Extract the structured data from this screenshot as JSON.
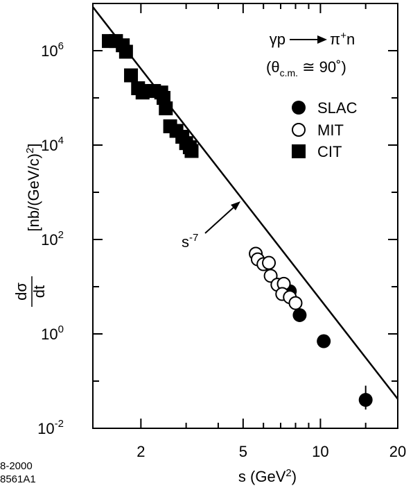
{
  "chart_data": {
    "type": "scatter",
    "xscale": "log",
    "yscale": "log",
    "xlim": [
      1.3,
      20
    ],
    "ylim": [
      0.01,
      10000000
    ],
    "x_ticks": [
      "2",
      "5",
      "10",
      "20"
    ],
    "y_ticks": [
      {
        "value": 1000000,
        "base": "10",
        "exp": "6"
      },
      {
        "value": 10000,
        "base": "10",
        "exp": "4"
      },
      {
        "value": 100,
        "base": "10",
        "exp": "2"
      },
      {
        "value": 1,
        "base": "10",
        "exp": "0"
      },
      {
        "value": 0.01,
        "base": "10",
        "exp": "-2"
      }
    ],
    "xlabel": {
      "main": "s (GeV",
      "sup": "2",
      "close": ")"
    },
    "ylabel": {
      "frac_num": "dσ",
      "frac_den": "dt",
      "units_main": "[nb/(GeV/c)",
      "units_sup": "2",
      "units_close": "]"
    },
    "reaction": {
      "line1_left": "γp",
      "line1_right_main": "π",
      "line1_right_sup": "+",
      "line1_right_tail": "n",
      "line2_open": "(θ",
      "line2_sub": "c.m.",
      "line2_rest": " ≅ 90˚)"
    },
    "fit_line": {
      "label_main": "s",
      "label_sup": "-7",
      "slope": -7,
      "x": [
        1.3,
        20
      ],
      "y": [
        8420000,
        0.0418
      ]
    },
    "legend": [
      "SLAC",
      "MIT",
      "CIT"
    ],
    "series": [
      {
        "name": "SLAC",
        "marker": "filled-circle",
        "points": [
          [
            7.6,
            8.0
          ],
          [
            8.3,
            2.5
          ],
          [
            10.3,
            0.7
          ],
          [
            15.0,
            0.04
          ]
        ],
        "yerr": [
          [
            15.0,
            0.025,
            0.08
          ]
        ]
      },
      {
        "name": "MIT",
        "marker": "open-circle",
        "points": [
          [
            5.6,
            50
          ],
          [
            5.7,
            38
          ],
          [
            6.0,
            30
          ],
          [
            6.3,
            32
          ],
          [
            6.4,
            17
          ],
          [
            6.8,
            11
          ],
          [
            7.2,
            11.5
          ],
          [
            7.1,
            7
          ],
          [
            7.6,
            6
          ],
          [
            8.0,
            4.5
          ]
        ]
      },
      {
        "name": "CIT",
        "marker": "filled-square",
        "points": [
          [
            1.5,
            1600000
          ],
          [
            1.6,
            1600000
          ],
          [
            1.7,
            1300000
          ],
          [
            1.75,
            950000
          ],
          [
            1.83,
            300000
          ],
          [
            1.95,
            160000
          ],
          [
            2.03,
            130000
          ],
          [
            2.1,
            140000
          ],
          [
            2.25,
            140000
          ],
          [
            2.4,
            130000
          ],
          [
            2.45,
            100000
          ],
          [
            2.5,
            60000
          ],
          [
            2.6,
            25000
          ],
          [
            2.75,
            20000
          ],
          [
            2.9,
            15000
          ],
          [
            3.0,
            11000
          ],
          [
            3.1,
            9000
          ],
          [
            3.15,
            7500
          ]
        ]
      }
    ]
  },
  "footnote": {
    "line1": "8-2000",
    "line2": "8561A1"
  }
}
